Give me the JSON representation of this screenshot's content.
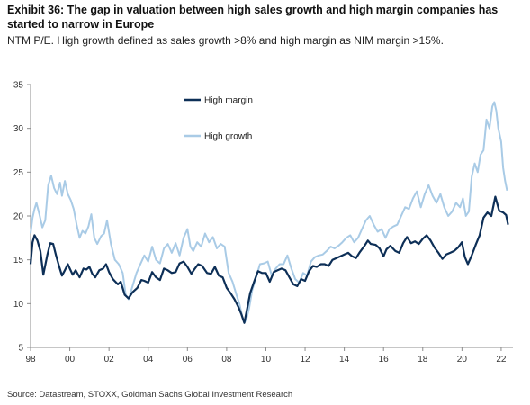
{
  "header": {
    "title": "Exhibit 36: The gap in valuation between high sales growth and high margin companies has started to narrow in Europe",
    "subtitle": "NTM P/E. High growth defined as sales growth >8% and high margin as NIM margin >15%."
  },
  "footer": {
    "source": "Source: Datastream, STOXX, Goldman Sachs Global Investment Research"
  },
  "chart_data": {
    "type": "line",
    "xlim": [
      1998.0,
      2022.6
    ],
    "ylim": [
      5,
      35
    ],
    "yticks": [
      5,
      10,
      15,
      20,
      25,
      30,
      35
    ],
    "xtick_values": [
      1998,
      2000,
      2002,
      2004,
      2006,
      2008,
      2010,
      2012,
      2014,
      2016,
      2018,
      2020,
      2022
    ],
    "xtick_labels": [
      "98",
      "00",
      "02",
      "04",
      "06",
      "08",
      "10",
      "12",
      "14",
      "16",
      "18",
      "20",
      "22"
    ],
    "grid": false,
    "legend_position": "top-center",
    "series": [
      {
        "name": "High margin",
        "color": "#0d2f57",
        "x": [
          1998.0,
          1998.1,
          1998.2,
          1998.35,
          1998.5,
          1998.65,
          1998.85,
          1999.0,
          1999.15,
          1999.3,
          1999.45,
          1999.6,
          1999.75,
          1999.9,
          2000.0,
          2000.15,
          2000.3,
          2000.5,
          2000.7,
          2000.85,
          2001.0,
          2001.15,
          2001.3,
          2001.5,
          2001.7,
          2001.85,
          2002.0,
          2002.2,
          2002.45,
          2002.6,
          2002.8,
          2003.0,
          2003.2,
          2003.45,
          2003.65,
          2003.8,
          2004.0,
          2004.2,
          2004.4,
          2004.6,
          2004.8,
          2005.0,
          2005.2,
          2005.4,
          2005.6,
          2005.8,
          2006.0,
          2006.2,
          2006.35,
          2006.55,
          2006.75,
          2007.0,
          2007.2,
          2007.4,
          2007.6,
          2007.8,
          2008.0,
          2008.2,
          2008.4,
          2008.6,
          2008.75,
          2008.9,
          2009.05,
          2009.2,
          2009.4,
          2009.6,
          2009.8,
          2010.0,
          2010.2,
          2010.4,
          2010.6,
          2010.8,
          2011.0,
          2011.2,
          2011.4,
          2011.6,
          2011.8,
          2012.0,
          2012.2,
          2012.4,
          2012.6,
          2012.8,
          2013.0,
          2013.2,
          2013.4,
          2013.6,
          2013.8,
          2014.0,
          2014.2,
          2014.4,
          2014.6,
          2014.8,
          2015.0,
          2015.2,
          2015.35,
          2015.6,
          2015.8,
          2016.0,
          2016.15,
          2016.35,
          2016.6,
          2016.8,
          2017.0,
          2017.2,
          2017.4,
          2017.6,
          2017.8,
          2018.0,
          2018.2,
          2018.4,
          2018.6,
          2018.8,
          2019.0,
          2019.2,
          2019.4,
          2019.6,
          2019.8,
          2020.0,
          2020.15,
          2020.3,
          2020.5,
          2020.7,
          2020.9,
          2021.1,
          2021.3,
          2021.5,
          2021.7,
          2021.9,
          2022.1,
          2022.25,
          2022.35
        ],
        "values": [
          14.5,
          17.0,
          17.8,
          17.2,
          16.0,
          13.3,
          15.5,
          16.9,
          16.8,
          15.5,
          14.3,
          13.2,
          13.8,
          14.5,
          14.0,
          13.3,
          13.8,
          13.0,
          14.0,
          13.9,
          14.2,
          13.4,
          13.0,
          13.8,
          14.0,
          14.5,
          13.6,
          12.8,
          12.2,
          12.5,
          11.0,
          10.6,
          11.3,
          11.8,
          12.7,
          12.6,
          12.4,
          13.6,
          13.0,
          12.7,
          14.0,
          13.8,
          13.5,
          13.6,
          14.6,
          14.8,
          14.2,
          13.4,
          13.9,
          14.5,
          14.3,
          13.5,
          13.4,
          14.2,
          13.2,
          13.0,
          11.8,
          11.2,
          10.5,
          9.6,
          8.8,
          7.8,
          9.5,
          11.2,
          12.5,
          13.7,
          13.5,
          13.5,
          12.5,
          13.6,
          13.8,
          14.0,
          13.8,
          13.0,
          12.2,
          12.0,
          12.8,
          12.6,
          13.7,
          14.3,
          14.2,
          14.5,
          14.5,
          14.3,
          15.0,
          15.2,
          15.4,
          15.6,
          15.8,
          15.4,
          15.2,
          15.9,
          16.5,
          17.2,
          16.8,
          16.7,
          16.3,
          15.4,
          16.2,
          16.6,
          16.0,
          15.8,
          16.9,
          17.6,
          16.9,
          17.1,
          16.8,
          17.4,
          17.8,
          17.2,
          16.4,
          15.8,
          15.1,
          15.6,
          15.8,
          16.0,
          16.4,
          17.0,
          15.3,
          14.5,
          15.5,
          16.7,
          17.8,
          19.8,
          20.4,
          20.0,
          22.2,
          20.6,
          20.4,
          20.1,
          19.0
        ]
      },
      {
        "name": "High growth",
        "color": "#a9cbe6",
        "x": [
          1998.0,
          1998.1,
          1998.2,
          1998.3,
          1998.45,
          1998.6,
          1998.75,
          1998.9,
          1999.05,
          1999.2,
          1999.35,
          1999.5,
          1999.6,
          1999.75,
          1999.9,
          2000.05,
          2000.2,
          2000.35,
          2000.5,
          2000.65,
          2000.8,
          2000.95,
          2001.1,
          2001.25,
          2001.4,
          2001.6,
          2001.75,
          2001.9,
          2002.1,
          2002.3,
          2002.5,
          2002.7,
          2002.85,
          2003.0,
          2003.2,
          2003.4,
          2003.6,
          2003.8,
          2004.0,
          2004.2,
          2004.4,
          2004.6,
          2004.8,
          2005.0,
          2005.2,
          2005.4,
          2005.6,
          2005.8,
          2006.0,
          2006.15,
          2006.3,
          2006.5,
          2006.7,
          2006.9,
          2007.1,
          2007.3,
          2007.5,
          2007.7,
          2007.9,
          2008.1,
          2008.3,
          2008.5,
          2008.65,
          2008.8,
          2008.9,
          2009.0,
          2009.15,
          2009.3,
          2009.5,
          2009.7,
          2009.9,
          2010.1,
          2010.3,
          2010.5,
          2010.7,
          2010.9,
          2011.1,
          2011.3,
          2011.5,
          2011.7,
          2011.9,
          2012.1,
          2012.3,
          2012.5,
          2012.7,
          2012.9,
          2013.1,
          2013.3,
          2013.5,
          2013.7,
          2013.9,
          2014.1,
          2014.3,
          2014.5,
          2014.7,
          2014.9,
          2015.1,
          2015.3,
          2015.5,
          2015.7,
          2015.9,
          2016.1,
          2016.3,
          2016.5,
          2016.7,
          2016.9,
          2017.1,
          2017.3,
          2017.5,
          2017.7,
          2017.9,
          2018.1,
          2018.3,
          2018.5,
          2018.7,
          2018.9,
          2019.1,
          2019.3,
          2019.5,
          2019.7,
          2019.9,
          2020.05,
          2020.2,
          2020.35,
          2020.5,
          2020.65,
          2020.8,
          2020.95,
          2021.1,
          2021.25,
          2021.4,
          2021.55,
          2021.65,
          2021.75,
          2021.85,
          2022.0,
          2022.1,
          2022.2,
          2022.3
        ],
        "values": [
          18.0,
          19.8,
          20.8,
          21.5,
          20.2,
          18.7,
          19.5,
          23.5,
          24.6,
          23.2,
          22.5,
          23.8,
          22.3,
          24.0,
          22.5,
          21.8,
          20.8,
          19.0,
          17.5,
          18.3,
          18.0,
          18.8,
          20.2,
          17.5,
          16.8,
          17.7,
          18.0,
          19.5,
          16.8,
          15.0,
          14.5,
          13.5,
          11.0,
          10.5,
          12.0,
          13.5,
          14.5,
          15.5,
          14.8,
          16.5,
          15.0,
          14.6,
          16.3,
          16.8,
          15.8,
          16.9,
          15.5,
          17.5,
          18.5,
          16.5,
          16.0,
          17.0,
          16.5,
          18.0,
          17.0,
          17.6,
          16.3,
          16.8,
          16.5,
          13.5,
          12.5,
          11.0,
          10.0,
          8.5,
          7.8,
          8.2,
          9.5,
          11.5,
          13.0,
          14.5,
          14.6,
          14.8,
          13.2,
          14.0,
          14.5,
          14.5,
          15.5,
          14.0,
          12.8,
          12.4,
          13.5,
          13.2,
          14.8,
          15.3,
          15.5,
          15.6,
          16.0,
          16.5,
          16.3,
          16.6,
          17.0,
          17.5,
          17.8,
          17.0,
          17.5,
          18.5,
          19.5,
          20.0,
          19.0,
          18.2,
          18.5,
          17.5,
          18.5,
          18.8,
          19.0,
          20.0,
          21.0,
          20.8,
          22.0,
          22.8,
          21.0,
          22.5,
          23.5,
          22.3,
          21.5,
          22.5,
          21.0,
          20.0,
          20.5,
          21.5,
          21.0,
          22.0,
          20.0,
          20.5,
          24.5,
          26.0,
          25.0,
          27.0,
          27.5,
          31.0,
          30.0,
          32.5,
          33.0,
          32.0,
          30.0,
          28.5,
          25.5,
          24.0,
          22.9
        ]
      }
    ]
  }
}
